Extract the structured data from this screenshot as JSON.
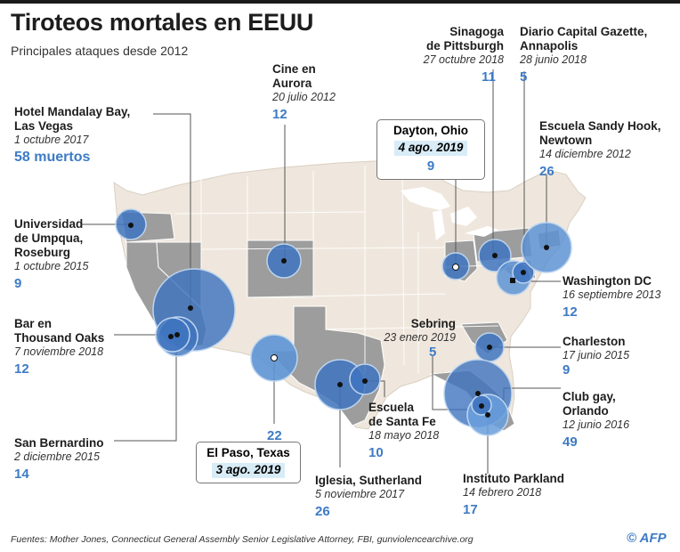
{
  "header": {
    "title": "Tiroteos mortales en EEUU",
    "subtitle": "Principales ataques desde 2012"
  },
  "colors": {
    "land": "#efe7dd",
    "highlight_state": "#9d9d9d",
    "border": "#ffffff",
    "bubble_fill": "#3f74bf",
    "bubble_edge": "#bcd4ee",
    "count_text": "#3d7bc4",
    "highlight_box": "#d8ecf7"
  },
  "events": [
    {
      "name": "Hotel Mandalay Bay,\nLas Vegas",
      "date": "1 octubre 2017",
      "count": "58 muertos"
    },
    {
      "name": "Universidad\nde Umpqua,\nRoseburg",
      "date": "1 octubre 2015",
      "count": "9"
    },
    {
      "name": "Bar en\nThousand Oaks",
      "date": "7 noviembre 2018",
      "count": "12"
    },
    {
      "name": "San Bernardino",
      "date": "2 diciembre 2015",
      "count": "14"
    },
    {
      "name": "Cine en\nAurora",
      "date": "20 julio 2012",
      "count": "12"
    },
    {
      "name": "El Paso, Texas",
      "date": "3 ago. 2019",
      "count": "22"
    },
    {
      "name": "Iglesia, Sutherland",
      "date": "5 noviembre 2017",
      "count": "26"
    },
    {
      "name": "Escuela\nde Santa Fe",
      "date": "18 mayo 2018",
      "count": "10"
    },
    {
      "name": "Dayton, Ohio",
      "date": "4 ago. 2019",
      "count": "9"
    },
    {
      "name": "Sinagoga\nde Pittsburgh",
      "date": "27 octubre 2018",
      "count": "11"
    },
    {
      "name": "Diario Capital Gazette,\nAnnapolis",
      "date": "28 junio 2018",
      "count": "5"
    },
    {
      "name": "Escuela Sandy Hook,\nNewtown",
      "date": "14 diciembre 2012",
      "count": "26"
    },
    {
      "name": "Washington DC",
      "date": "16 septiembre 2013",
      "count": "12"
    },
    {
      "name": "Sebring",
      "date": "23 enero 2019",
      "count": "5"
    },
    {
      "name": "Charleston",
      "date": "17 junio 2015",
      "count": "9"
    },
    {
      "name": "Club gay,\nOrlando",
      "date": "12 junio 2016",
      "count": "49"
    },
    {
      "name": "Instituto Parkland",
      "date": "14 febrero 2018",
      "count": "17"
    }
  ],
  "footer": {
    "source": "Fuentes: Mother Jones, Connecticut General Assembly Senior Legislative Attorney, FBI, gunviolencearchive.org",
    "logo": "© AFP"
  }
}
